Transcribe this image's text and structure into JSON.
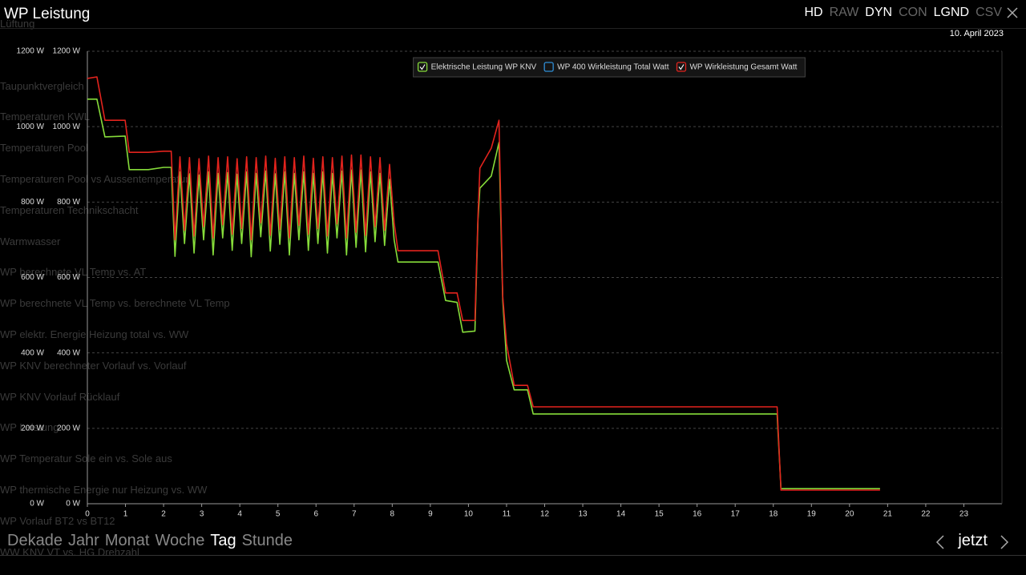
{
  "header": {
    "title": "WP Leistung",
    "toggles": [
      {
        "label": "HD",
        "active": true
      },
      {
        "label": "RAW",
        "active": false
      },
      {
        "label": "DYN",
        "active": true
      },
      {
        "label": "CON",
        "active": false
      },
      {
        "label": "LGND",
        "active": true
      },
      {
        "label": "CSV",
        "active": false
      }
    ],
    "date": "10. April 2023"
  },
  "menu": [
    "Lüftung",
    "Taupunktvergleich",
    "Temperaturen KWL",
    "Temperaturen Pool",
    "Temperaturen Pool vs Aussentemperatur",
    "Temperaturen Technikschacht",
    "Warmwasser",
    "WP berechnete VL Temp vs. AT",
    "WP berechnete VL Temp vs. berechnete VL Temp",
    "WP elektr. Energie Heizung total vs. WW",
    "WP KNV berechneter Vorlauf vs. Vorlauf",
    "WP KNV Vorlauf Rücklauf",
    "WP Leistung",
    "WP Temperatur Sole ein vs. Sole aus",
    "WP thermische Energie nur Heizung vs. WW",
    "WP Vorlauf BT2 vs BT12",
    "WW KNV VT vs. HG Drehzahl"
  ],
  "chart_data": {
    "type": "line",
    "legend": "top",
    "grid": true,
    "xlim": [
      0,
      24
    ],
    "xticks": [
      0,
      1,
      2,
      3,
      4,
      5,
      6,
      7,
      8,
      9,
      10,
      11,
      12,
      13,
      14,
      15,
      16,
      17,
      18,
      19,
      20,
      21,
      22,
      23
    ],
    "ylim": [
      0,
      1200
    ],
    "yticks": [
      {
        "value": 0,
        "label": "0 W"
      },
      {
        "value": 200,
        "label": "200 W"
      },
      {
        "value": 400,
        "label": "400 W"
      },
      {
        "value": 600,
        "label": "600 W"
      },
      {
        "value": 800,
        "label": "800 W"
      },
      {
        "value": 1000,
        "label": "1000 W"
      },
      {
        "value": 1200,
        "label": "1200 W"
      }
    ],
    "y2lim": [
      0,
      1200
    ],
    "y2ticks": [
      {
        "value": 0,
        "label": "0 W"
      },
      {
        "value": 200,
        "label": "200 W"
      },
      {
        "value": 400,
        "label": "400 W"
      },
      {
        "value": 600,
        "label": "600 W"
      },
      {
        "value": 800,
        "label": "800 W"
      },
      {
        "value": 1000,
        "label": "1000 W"
      },
      {
        "value": 1200,
        "label": "1200 W"
      }
    ],
    "x": [
      0,
      0.25,
      0.46,
      0.99,
      1.1,
      1.6,
      2.0,
      2.2,
      2.3,
      2.43,
      2.55,
      2.68,
      2.8,
      2.93,
      3.05,
      3.18,
      3.3,
      3.43,
      3.55,
      3.68,
      3.8,
      3.93,
      4.05,
      4.18,
      4.3,
      4.43,
      4.55,
      4.68,
      4.8,
      4.93,
      5.05,
      5.18,
      5.3,
      5.43,
      5.55,
      5.68,
      5.8,
      5.93,
      6.05,
      6.18,
      6.3,
      6.43,
      6.55,
      6.68,
      6.8,
      6.93,
      7.05,
      7.18,
      7.3,
      7.43,
      7.55,
      7.68,
      7.8,
      7.93,
      8.05,
      8.15,
      9.2,
      9.4,
      9.7,
      9.85,
      10.17,
      10.25,
      10.3,
      10.6,
      10.8,
      10.9,
      11.0,
      11.2,
      11.55,
      11.7,
      18.1,
      18.2,
      20.8
    ],
    "series": [
      {
        "name": "Elektrische Leistung WP KNV",
        "color": "#86dc3a",
        "visible": true,
        "values": [
          1073,
          1073,
          973,
          975,
          886,
          886,
          892,
          892,
          656,
          880,
          690,
          875,
          665,
          872,
          700,
          880,
          660,
          876,
          705,
          878,
          672,
          874,
          690,
          880,
          655,
          876,
          708,
          882,
          670,
          875,
          688,
          880,
          660,
          876,
          700,
          880,
          672,
          876,
          690,
          880,
          665,
          876,
          705,
          882,
          660,
          885,
          680,
          885,
          668,
          880,
          695,
          876,
          685,
          860,
          700,
          641,
          641,
          539,
          534,
          455,
          458,
          752,
          837,
          869,
          958,
          540,
          380,
          302,
          302,
          238,
          238,
          40,
          40
        ]
      },
      {
        "name": "WP 400 Wirkleistung Total Watt",
        "color": "#2f8fd8",
        "visible": false,
        "values": [
          null,
          null,
          null,
          null,
          null,
          null,
          null,
          null,
          null,
          null,
          null,
          null,
          null,
          null,
          null,
          null,
          null,
          null,
          null,
          null,
          null,
          null,
          null,
          null,
          null,
          null,
          null,
          null,
          null,
          null,
          null,
          null,
          null,
          null,
          null,
          null,
          null,
          null,
          null,
          null,
          null,
          null,
          null,
          null,
          null,
          null,
          null,
          null,
          null,
          null,
          null,
          null,
          null,
          null,
          null,
          null,
          null,
          null,
          null,
          null,
          null,
          null,
          null,
          null,
          null,
          null,
          null,
          null,
          null,
          null,
          null,
          null,
          null
        ]
      },
      {
        "name": "WP Wirkleistung Gesamt Watt",
        "color": "#e2231d",
        "visible": true,
        "values": [
          1128,
          1132,
          1017,
          1017,
          932,
          932,
          935,
          935,
          700,
          920,
          725,
          918,
          710,
          915,
          735,
          922,
          705,
          918,
          740,
          920,
          715,
          915,
          730,
          920,
          700,
          918,
          745,
          922,
          712,
          916,
          728,
          920,
          705,
          918,
          738,
          922,
          715,
          916,
          730,
          920,
          710,
          918,
          742,
          922,
          705,
          925,
          720,
          925,
          712,
          920,
          735,
          918,
          725,
          900,
          745,
          671,
          671,
          559,
          559,
          486,
          486,
          763,
          890,
          943,
          1017,
          550,
          423,
          314,
          314,
          257,
          257,
          36,
          36
        ]
      }
    ]
  },
  "nav": {
    "ranges": [
      {
        "label": "Dekade",
        "active": false
      },
      {
        "label": "Jahr",
        "active": false
      },
      {
        "label": "Monat",
        "active": false
      },
      {
        "label": "Woche",
        "active": false
      },
      {
        "label": "Tag",
        "active": true
      },
      {
        "label": "Stunde",
        "active": false
      }
    ],
    "now": "jetzt"
  }
}
